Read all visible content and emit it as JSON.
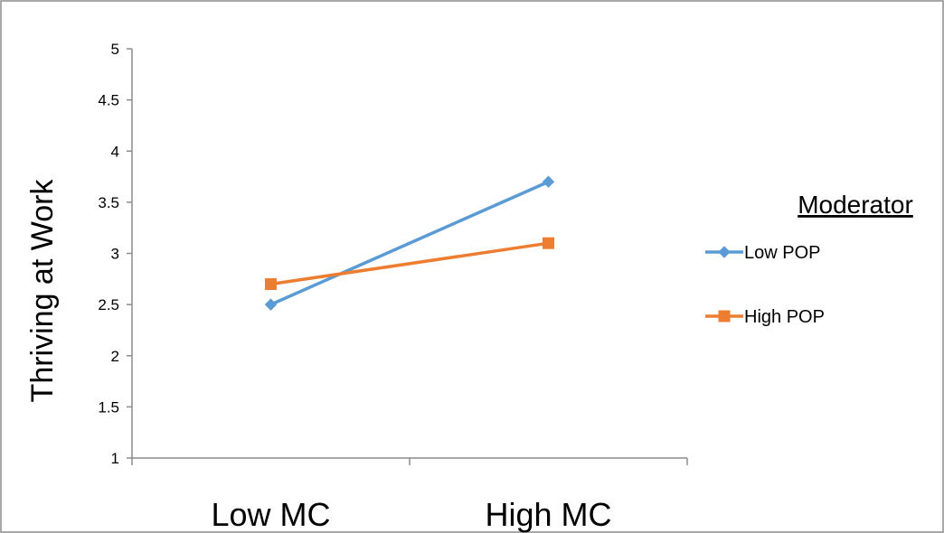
{
  "chart_data": {
    "type": "line",
    "title": "",
    "xlabel": "",
    "ylabel": "Thriving at Work",
    "categories": [
      "Low MC",
      "High MC"
    ],
    "ylim": [
      1,
      5
    ],
    "yticks": [
      "1",
      "1.5",
      "2",
      "2.5",
      "3",
      "3.5",
      "4",
      "4.5",
      "5"
    ],
    "grid": false,
    "legend": {
      "title": "Moderator",
      "placement": "right"
    },
    "series": [
      {
        "name": "Low POP",
        "values": [
          2.5,
          3.7
        ],
        "color": "#5B9BD5",
        "marker": "diamond"
      },
      {
        "name": "High POP",
        "values": [
          2.7,
          3.1
        ],
        "color": "#ED7D31",
        "marker": "square"
      }
    ]
  }
}
